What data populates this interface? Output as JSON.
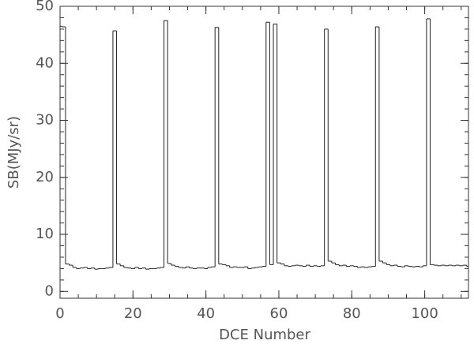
{
  "chart_data": {
    "type": "step",
    "x_label": "DCE Number",
    "y_label": "SB(MJy/sr)",
    "xlim": [
      0,
      112
    ],
    "ylim": [
      -1.2,
      50
    ],
    "xticks": [
      0,
      20,
      40,
      60,
      80,
      100
    ],
    "yticks": [
      0,
      10,
      20,
      30,
      40,
      50
    ],
    "color": "#222222",
    "x": [
      0,
      1,
      2,
      3,
      4,
      5,
      6,
      7,
      8,
      9,
      10,
      11,
      12,
      13,
      14,
      15,
      16,
      17,
      18,
      19,
      20,
      21,
      22,
      23,
      24,
      25,
      26,
      27,
      28,
      29,
      30,
      31,
      32,
      33,
      34,
      35,
      36,
      37,
      38,
      39,
      40,
      41,
      42,
      43,
      44,
      45,
      46,
      47,
      48,
      49,
      50,
      51,
      52,
      53,
      54,
      55,
      56,
      57,
      58,
      59,
      60,
      61,
      62,
      63,
      64,
      65,
      66,
      67,
      68,
      69,
      70,
      71,
      72,
      73,
      74,
      75,
      76,
      77,
      78,
      79,
      80,
      81,
      82,
      83,
      84,
      85,
      86,
      87,
      88,
      89,
      90,
      91,
      92,
      93,
      94,
      95,
      96,
      97,
      98,
      99,
      100,
      101,
      102,
      103,
      104,
      105,
      106,
      107,
      108,
      109,
      110,
      111,
      112
    ],
    "values": [
      46.5,
      46.4,
      4.8,
      4.6,
      4.2,
      4.0,
      4.1,
      4.2,
      4.0,
      4.1,
      3.9,
      4.0,
      4.0,
      4.1,
      4.2,
      45.7,
      4.8,
      4.5,
      4.2,
      4.1,
      4.0,
      4.2,
      4.0,
      4.1,
      3.9,
      4.0,
      4.0,
      4.1,
      4.2,
      47.5,
      4.9,
      4.6,
      4.4,
      4.2,
      4.1,
      4.3,
      4.1,
      4.0,
      4.1,
      4.1,
      4.0,
      4.2,
      4.3,
      46.3,
      4.8,
      4.7,
      4.5,
      4.2,
      4.3,
      4.2,
      4.2,
      4.3,
      4.0,
      4.1,
      4.2,
      4.3,
      4.4,
      47.2,
      4.7,
      46.9,
      5.0,
      4.8,
      4.5,
      4.4,
      4.5,
      4.6,
      4.5,
      4.4,
      4.6,
      4.4,
      4.5,
      4.4,
      4.5,
      46.0,
      5.3,
      5.0,
      4.7,
      4.5,
      4.6,
      4.4,
      4.5,
      4.4,
      4.2,
      4.3,
      4.2,
      4.3,
      4.4,
      46.4,
      5.3,
      5.0,
      4.7,
      4.5,
      4.6,
      4.4,
      4.3,
      4.5,
      4.4,
      4.3,
      4.4,
      4.3,
      4.5,
      47.8,
      4.7,
      4.6,
      4.5,
      4.6,
      4.5,
      4.6,
      4.5,
      4.6,
      4.5,
      4.6,
      4.4
    ]
  }
}
